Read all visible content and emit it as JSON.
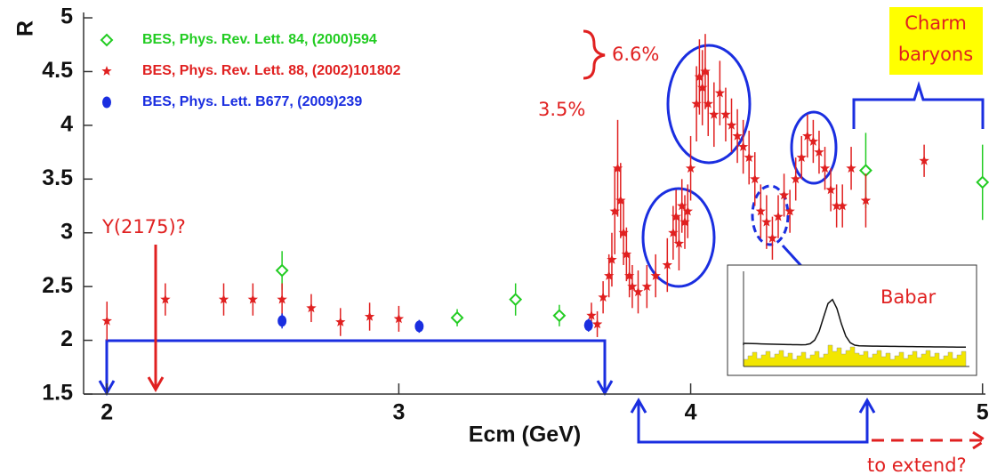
{
  "chart_data": {
    "type": "scatter",
    "ylabel": "R",
    "xlabel": "Ecm (GeV)",
    "xlim": [
      1.92,
      5.01
    ],
    "ylim": [
      1.5,
      5.05
    ],
    "xticks": [
      2,
      3,
      4,
      5
    ],
    "yticks": [
      1.5,
      2,
      2.5,
      3,
      3.5,
      4,
      4.5,
      5
    ],
    "legend": "upper left",
    "series": [
      {
        "name": "BES, Phys. Rev. Lett. 84, (2000)594",
        "color": "#22cc22",
        "marker": "diamond",
        "x": [
          2.6,
          3.2,
          3.4,
          3.55,
          4.6,
          5.0
        ],
        "values": [
          2.65,
          2.21,
          2.38,
          2.23,
          3.58,
          3.47
        ],
        "errors": [
          0.18,
          0.08,
          0.15,
          0.1,
          0.35,
          0.35
        ]
      },
      {
        "name": "BES, Phys. Rev. Lett. 88, (2002)101802",
        "color": "#e02020",
        "marker": "star",
        "x": [
          2.0,
          2.2,
          2.4,
          2.5,
          2.6,
          2.7,
          2.8,
          2.9,
          3.0,
          3.66,
          3.68,
          3.7,
          3.72,
          3.73,
          3.74,
          3.75,
          3.76,
          3.77,
          3.78,
          3.79,
          3.8,
          3.82,
          3.85,
          3.88,
          3.92,
          3.94,
          3.95,
          3.96,
          3.97,
          3.98,
          3.99,
          4.0,
          4.02,
          4.03,
          4.04,
          4.05,
          4.06,
          4.08,
          4.1,
          4.12,
          4.14,
          4.16,
          4.18,
          4.2,
          4.22,
          4.24,
          4.26,
          4.28,
          4.3,
          4.32,
          4.34,
          4.36,
          4.38,
          4.4,
          4.42,
          4.44,
          4.46,
          4.48,
          4.5,
          4.52,
          4.55,
          4.6,
          4.8
        ],
        "values": [
          2.18,
          2.38,
          2.38,
          2.38,
          2.38,
          2.3,
          2.17,
          2.22,
          2.2,
          2.23,
          2.15,
          2.4,
          2.6,
          2.75,
          3.2,
          3.6,
          3.3,
          3.0,
          2.8,
          2.6,
          2.5,
          2.45,
          2.5,
          2.6,
          2.7,
          3.0,
          3.15,
          2.9,
          3.25,
          3.1,
          3.2,
          3.6,
          4.2,
          4.45,
          4.35,
          4.5,
          4.2,
          4.1,
          4.3,
          4.1,
          4.0,
          3.9,
          3.8,
          3.7,
          3.5,
          3.2,
          3.1,
          2.95,
          3.15,
          3.35,
          3.2,
          3.5,
          3.7,
          3.9,
          3.85,
          3.75,
          3.6,
          3.4,
          3.25,
          3.25,
          3.6,
          3.3,
          3.67
        ],
        "errors": [
          0.18,
          0.15,
          0.15,
          0.15,
          0.15,
          0.13,
          0.13,
          0.13,
          0.12,
          0.12,
          0.12,
          0.15,
          0.2,
          0.25,
          0.4,
          0.45,
          0.35,
          0.3,
          0.25,
          0.2,
          0.2,
          0.2,
          0.2,
          0.2,
          0.25,
          0.25,
          0.25,
          0.25,
          0.25,
          0.25,
          0.25,
          0.3,
          0.35,
          0.35,
          0.35,
          0.35,
          0.3,
          0.3,
          0.3,
          0.25,
          0.25,
          0.25,
          0.25,
          0.25,
          0.25,
          0.25,
          0.25,
          0.2,
          0.2,
          0.2,
          0.2,
          0.2,
          0.2,
          0.2,
          0.2,
          0.2,
          0.2,
          0.2,
          0.2,
          0.2,
          0.2,
          0.25,
          0.15
        ]
      },
      {
        "name": "BES, Phys. Lett. B677, (2009)239",
        "color": "#1a2ee0",
        "marker": "ellipse",
        "x": [
          2.6,
          3.07,
          3.65
        ],
        "values": [
          2.18,
          2.13,
          2.14
        ],
        "errors": [
          0.07,
          0.06,
          0.06
        ]
      }
    ],
    "annotations": [
      "6.6%",
      "3.5%",
      "Charm",
      "baryons",
      "Y(2175)?",
      "Babar",
      "to extend?"
    ]
  }
}
